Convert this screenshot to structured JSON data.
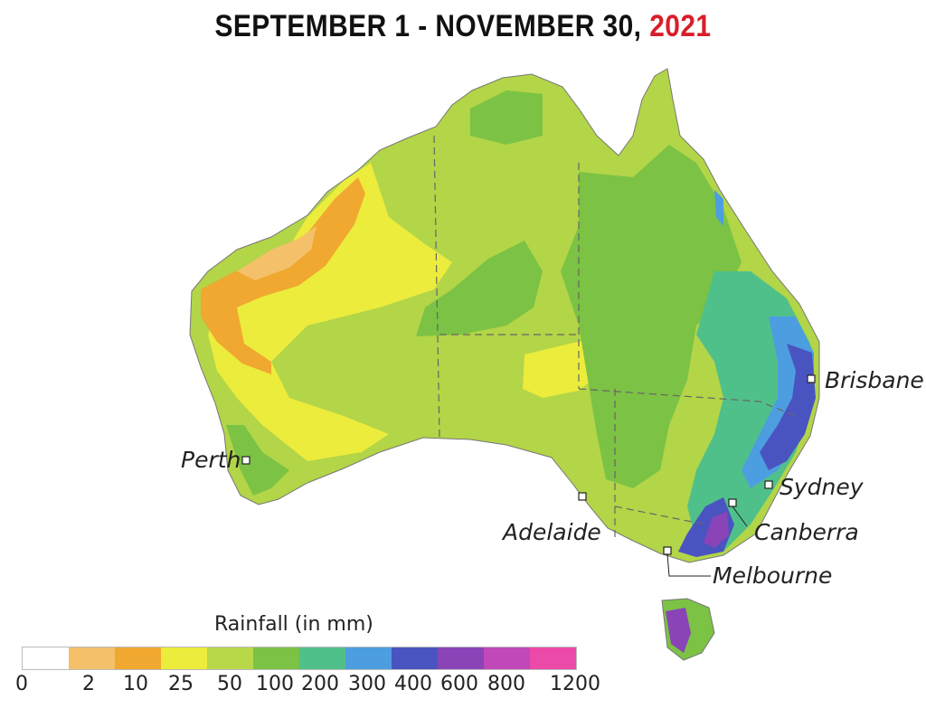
{
  "title": {
    "dates": "SEPTEMBER 1 - NOVEMBER 30, ",
    "year": "2021"
  },
  "cities": [
    {
      "name": "Brisbane"
    },
    {
      "name": "Sydney"
    },
    {
      "name": "Canberra"
    },
    {
      "name": "Melbourne"
    },
    {
      "name": "Adelaide"
    },
    {
      "name": "Perth"
    }
  ],
  "legend": {
    "title": "Rainfall (in mm)",
    "colors": [
      "#ffffff",
      "#f5c06a",
      "#f0a830",
      "#ecec3c",
      "#b8d84a",
      "#7cc244",
      "#50c08a",
      "#4c9ee0",
      "#4a54c0",
      "#8a44b8",
      "#c048b8",
      "#ec4aa8"
    ],
    "ticks": [
      "0",
      "2",
      "10",
      "25",
      "50",
      "100",
      "200",
      "300",
      "400",
      "600",
      "800",
      "1200"
    ]
  }
}
